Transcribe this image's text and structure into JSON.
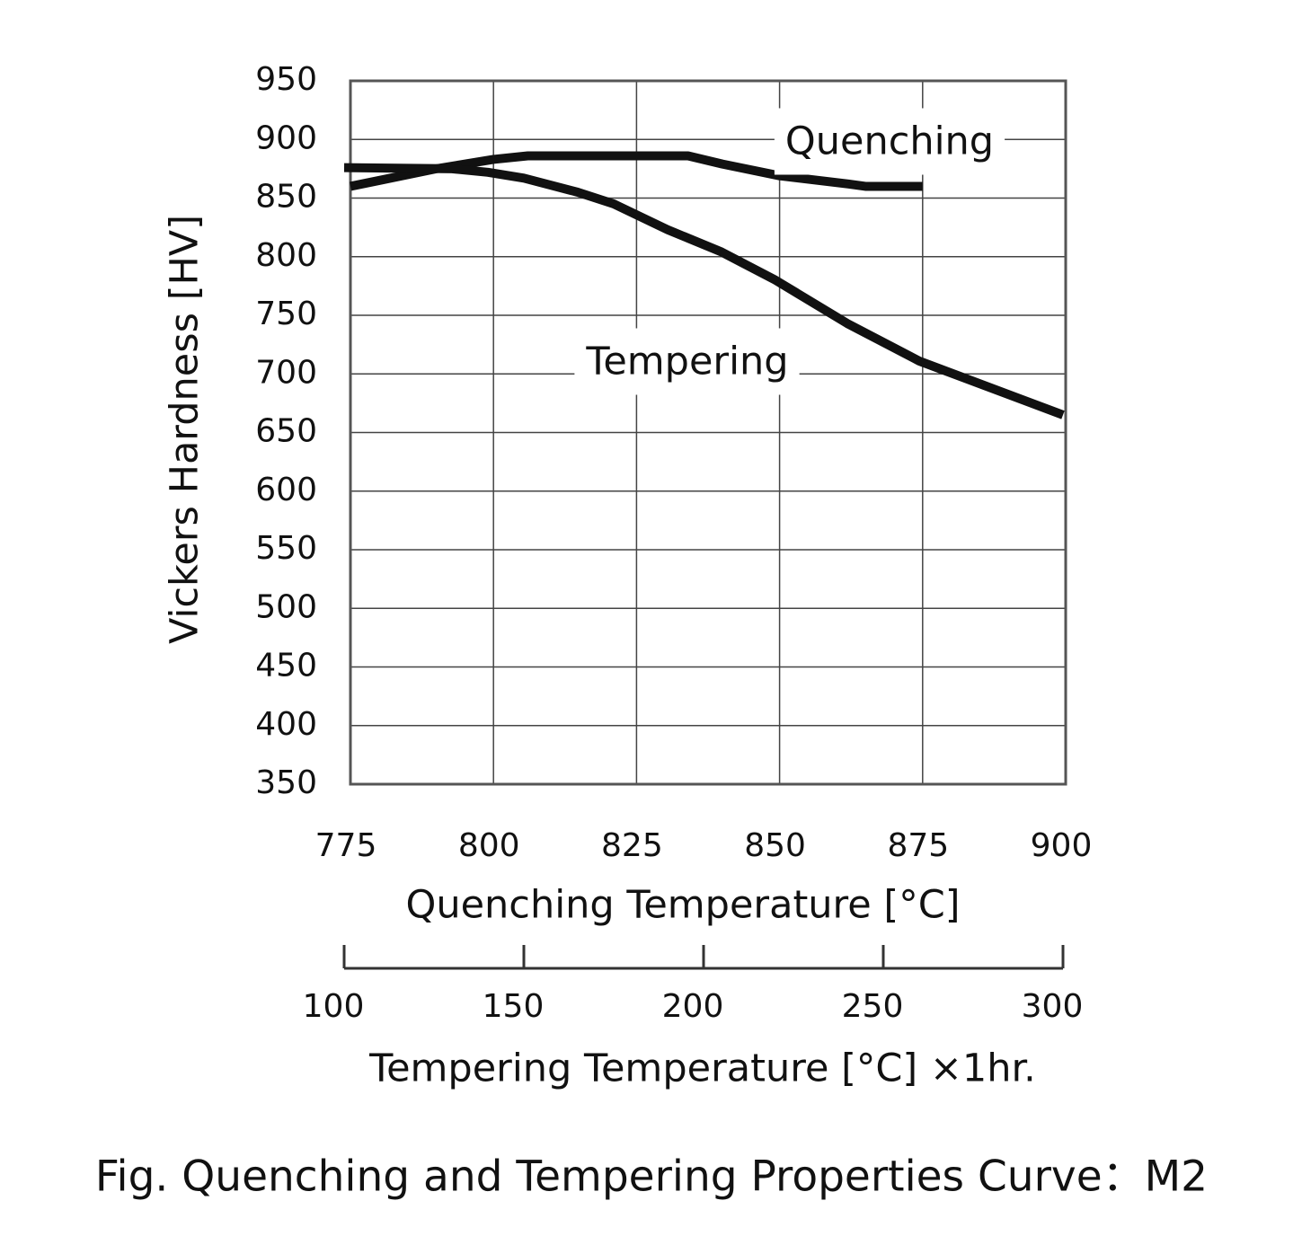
{
  "chart_data": {
    "type": "line",
    "y_label": "Vickers Hardness [HV]",
    "x_label": "Quenching Temperature [°C]",
    "x2_label": "Tempering Temperature [°C] ×1hr.",
    "caption": "Fig. Quenching and Tempering Properties Curve：M2",
    "xlim": [
      775,
      900
    ],
    "xticks": [
      775,
      800,
      825,
      850,
      875,
      900
    ],
    "x2lim": [
      100,
      300
    ],
    "x2ticks": [
      100,
      150,
      200,
      250,
      300
    ],
    "ylim": [
      350,
      950
    ],
    "yticks": [
      350,
      400,
      450,
      500,
      550,
      600,
      650,
      700,
      750,
      800,
      850,
      900,
      950
    ],
    "grid": true,
    "series": [
      {
        "name": "Quenching",
        "color": "#111111",
        "x": [
          775,
          780,
          790,
          800,
          806,
          834,
          840,
          850,
          862,
          865,
          875
        ],
        "values": [
          860,
          865,
          875,
          883,
          886,
          886,
          879,
          869,
          862,
          860,
          860
        ]
      },
      {
        "name": "Tempering",
        "color": "#111111",
        "axis": "x2",
        "x": [
          100,
          130,
          140,
          150,
          165,
          175,
          190,
          205,
          220,
          240,
          260,
          300
        ],
        "values": [
          876,
          875,
          872,
          867,
          855,
          845,
          823,
          804,
          780,
          743,
          711,
          665
        ]
      }
    ]
  }
}
